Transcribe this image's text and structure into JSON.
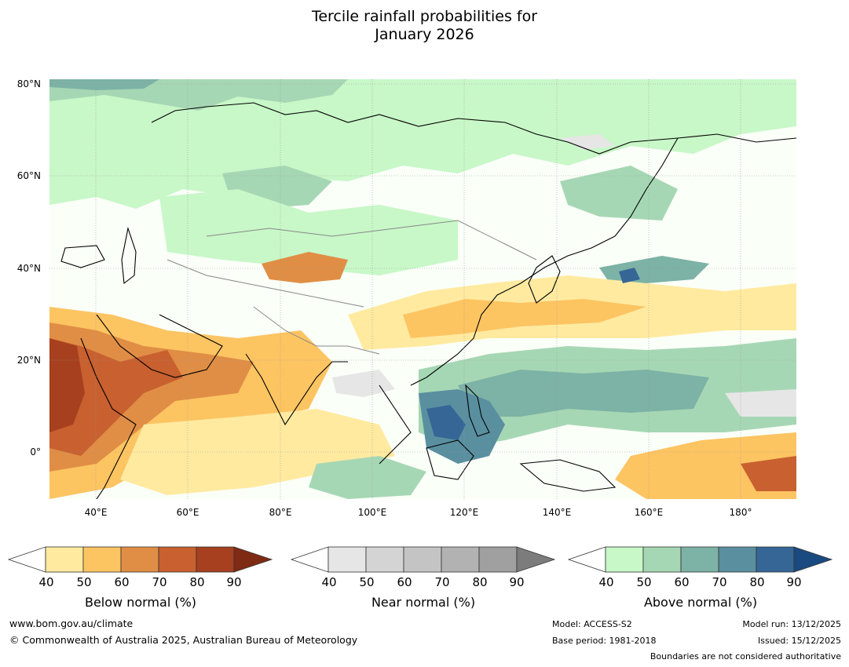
{
  "title_line1": "Tercile rainfall probabilities for",
  "title_line2": "January 2026",
  "map": {
    "lat_ticks": [
      "80°N",
      "60°N",
      "40°N",
      "20°N",
      "0°"
    ],
    "lon_ticks": [
      "40°E",
      "60°E",
      "80°E",
      "100°E",
      "120°E",
      "140°E",
      "160°E",
      "180°"
    ]
  },
  "legends": [
    {
      "label": "Below normal (%)",
      "ticks": [
        "40",
        "50",
        "60",
        "70",
        "80",
        "90"
      ],
      "colors": [
        "#ffffff",
        "#ffeaa0",
        "#fdc462",
        "#e08e45",
        "#c8602f",
        "#a6401f",
        "#7f2a13"
      ]
    },
    {
      "label": "Near normal (%)",
      "ticks": [
        "40",
        "50",
        "60",
        "70",
        "80",
        "90"
      ],
      "colors": [
        "#ffffff",
        "#e6e6e6",
        "#d4d4d4",
        "#c4c4c4",
        "#b2b2b2",
        "#a0a0a0",
        "#7c7c7c"
      ]
    },
    {
      "label": "Above normal (%)",
      "ticks": [
        "40",
        "50",
        "60",
        "70",
        "80",
        "90"
      ],
      "colors": [
        "#ffffff",
        "#c8f7c8",
        "#a6d7b4",
        "#7db2a6",
        "#5a8fa0",
        "#366696",
        "#1a4a80"
      ]
    }
  ],
  "footer": {
    "url": "www.bom.gov.au/climate",
    "copyright": "© Commonwealth of Australia 2025, Australian Bureau of Meteorology",
    "model": "Model: ACCESS-S2",
    "base_period": "Base period: 1981-2018",
    "model_run": "Model run: 13/12/2025",
    "issued": "Issued: 15/12/2025",
    "disclaimer": "Boundaries are not considered authoritative"
  }
}
